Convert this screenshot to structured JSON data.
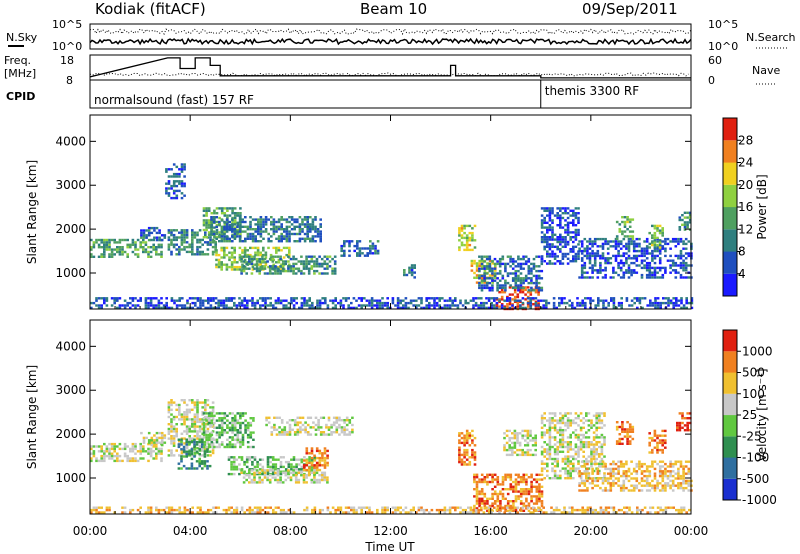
{
  "header": {
    "station": "Kodiak (fitACF)",
    "beam": "Beam 10",
    "date": "09/Sep/2011"
  },
  "summary_panels": {
    "nsky_label": "N.Sky",
    "nsearch_label": "N.Search",
    "nsky_ticks": [
      "10^5",
      "10^0"
    ],
    "nsearch_ticks": [
      "10^5",
      "10^0"
    ],
    "freq_label": "Freq.",
    "freq_unit": "[MHz]",
    "freq_ticks": [
      "18",
      "8"
    ],
    "nave_label": "Nave",
    "nave_ticks": [
      "60",
      "0"
    ],
    "cpid_label": "CPID",
    "programs": [
      {
        "name": "normalsound (fast) 157 RF",
        "start_hour": 0,
        "end_hour": 18
      },
      {
        "name": "themis 3300 RF",
        "start_hour": 18,
        "end_hour": 24
      }
    ],
    "freq_step_hours": [
      [
        0,
        8.5
      ],
      [
        3.1,
        17.6
      ],
      [
        3.6,
        17.6
      ],
      [
        3.6,
        12.5
      ],
      [
        4.2,
        12.5
      ],
      [
        4.2,
        17.6
      ],
      [
        4.8,
        17.6
      ],
      [
        4.8,
        14
      ],
      [
        5.2,
        14
      ],
      [
        5.2,
        9
      ],
      [
        14.4,
        9
      ],
      [
        14.4,
        14
      ],
      [
        14.6,
        14
      ],
      [
        14.6,
        9
      ],
      [
        18,
        9
      ],
      [
        18,
        8
      ],
      [
        24,
        8
      ]
    ]
  },
  "chart_data": [
    {
      "type": "heatmap",
      "name": "power",
      "ylabel": "Slant Range [km]",
      "xlabel": "Time UT",
      "x_ticks": [
        "00:00",
        "04:00",
        "08:00",
        "12:00",
        "16:00",
        "20:00",
        "00:00"
      ],
      "x_range_hours": [
        0,
        24
      ],
      "y_ticks": [
        1000,
        2000,
        3000,
        4000
      ],
      "ylim": [
        180,
        4600
      ],
      "colorbar": {
        "label": "Power [dB]",
        "ticks": [
          4,
          8,
          12,
          16,
          20,
          24,
          28
        ],
        "range": [
          0,
          32
        ],
        "colors": [
          "#1a1aff",
          "#1f4fbf",
          "#2f7f7f",
          "#4fa060",
          "#8fd040",
          "#f0d020",
          "#f08020",
          "#e02010"
        ]
      },
      "echo_regions": [
        {
          "t": [
            0,
            2.9
          ],
          "r": [
            1380,
            1780
          ],
          "level": 13
        },
        {
          "t": [
            2.0,
            3.0
          ],
          "r": [
            1750,
            2050
          ],
          "level": 8
        },
        {
          "t": [
            3.1,
            5.0
          ],
          "r": [
            1400,
            2000
          ],
          "level": 11
        },
        {
          "t": [
            3.0,
            3.8
          ],
          "r": [
            2700,
            3500
          ],
          "level": 7
        },
        {
          "t": [
            4.5,
            6.0
          ],
          "r": [
            1800,
            2500
          ],
          "level": 14
        },
        {
          "t": [
            4.8,
            9.2
          ],
          "r": [
            1700,
            2300
          ],
          "level": 9
        },
        {
          "t": [
            5.0,
            8.0
          ],
          "r": [
            1100,
            1600
          ],
          "level": 17
        },
        {
          "t": [
            6.0,
            9.8
          ],
          "r": [
            1000,
            1400
          ],
          "level": 12
        },
        {
          "t": [
            10.0,
            11.5
          ],
          "r": [
            1400,
            1750
          ],
          "level": 8
        },
        {
          "t": [
            12.5,
            13.0
          ],
          "r": [
            900,
            1200
          ],
          "level": 8
        },
        {
          "t": [
            14.7,
            15.4
          ],
          "r": [
            1500,
            2100
          ],
          "level": 20
        },
        {
          "t": [
            15.2,
            16.2
          ],
          "r": [
            800,
            1300
          ],
          "level": 22
        },
        {
          "t": [
            16.2,
            17.9
          ],
          "r": [
            200,
            700
          ],
          "level": 29
        },
        {
          "t": [
            15.5,
            18.0
          ],
          "r": [
            600,
            1400
          ],
          "level": 8
        },
        {
          "t": [
            18.0,
            19.5
          ],
          "r": [
            1200,
            2500
          ],
          "level": 6
        },
        {
          "t": [
            19.5,
            24.0
          ],
          "r": [
            900,
            1800
          ],
          "level": 6
        },
        {
          "t": [
            21.0,
            21.7
          ],
          "r": [
            1800,
            2300
          ],
          "level": 16
        },
        {
          "t": [
            22.3,
            22.9
          ],
          "r": [
            1600,
            2100
          ],
          "level": 16
        },
        {
          "t": [
            23.5,
            24.0
          ],
          "r": [
            2000,
            2400
          ],
          "level": 12
        },
        {
          "t": [
            0,
            24.0
          ],
          "r": [
            200,
            450
          ],
          "level": 6
        }
      ]
    },
    {
      "type": "heatmap",
      "name": "velocity",
      "ylabel": "Slant Range [km]",
      "xlabel": "Time UT",
      "x_ticks": [
        "00:00",
        "04:00",
        "08:00",
        "12:00",
        "16:00",
        "20:00",
        "00:00"
      ],
      "x_range_hours": [
        0,
        24
      ],
      "y_ticks": [
        1000,
        2000,
        3000,
        4000
      ],
      "ylim": [
        180,
        4600
      ],
      "colorbar": {
        "label": "Velocity [m s⁻¹]",
        "ticks": [
          "1000",
          "500",
          "100",
          "25",
          "-25",
          "-100",
          "-500",
          "-1000"
        ],
        "colors": [
          "#1a2fd0",
          "#2f6fa0",
          "#2f8f50",
          "#60c840",
          "#c8c8c8",
          "#f0c030",
          "#f08020",
          "#e02010"
        ]
      },
      "echo_regions": [
        {
          "t": [
            0,
            2.9
          ],
          "r": [
            1400,
            1800
          ],
          "cls": 4
        },
        {
          "t": [
            2.0,
            3.0
          ],
          "r": [
            1750,
            2050
          ],
          "cls": 4
        },
        {
          "t": [
            3.1,
            4.9
          ],
          "r": [
            1500,
            2800
          ],
          "cls": 4
        },
        {
          "t": [
            3.5,
            4.8
          ],
          "r": [
            1200,
            1900
          ],
          "cls": 2
        },
        {
          "t": [
            4.5,
            6.5
          ],
          "r": [
            1700,
            2500
          ],
          "cls": 3
        },
        {
          "t": [
            5.5,
            9.0
          ],
          "r": [
            1100,
            1500
          ],
          "cls": 3
        },
        {
          "t": [
            7.0,
            10.5
          ],
          "r": [
            2000,
            2400
          ],
          "cls": 4
        },
        {
          "t": [
            6.0,
            9.5
          ],
          "r": [
            900,
            1200
          ],
          "cls": 4
        },
        {
          "t": [
            8.5,
            9.5
          ],
          "r": [
            1200,
            1700
          ],
          "cls": 6
        },
        {
          "t": [
            14.7,
            15.4
          ],
          "r": [
            1300,
            2100
          ],
          "cls": 6
        },
        {
          "t": [
            15.3,
            18.0
          ],
          "r": [
            250,
            1100
          ],
          "cls": 6
        },
        {
          "t": [
            16.5,
            17.8
          ],
          "r": [
            1500,
            2100
          ],
          "cls": 4
        },
        {
          "t": [
            18.0,
            20.5
          ],
          "r": [
            1000,
            2500
          ],
          "cls": 4
        },
        {
          "t": [
            19.5,
            24.0
          ],
          "r": [
            700,
            1400
          ],
          "cls": 5
        },
        {
          "t": [
            21.0,
            21.7
          ],
          "r": [
            1800,
            2300
          ],
          "cls": 6
        },
        {
          "t": [
            22.3,
            23.0
          ],
          "r": [
            1600,
            2100
          ],
          "cls": 6
        },
        {
          "t": [
            23.4,
            24.0
          ],
          "r": [
            2100,
            2500
          ],
          "cls": 7
        },
        {
          "t": [
            0,
            24.0
          ],
          "r": [
            200,
            350
          ],
          "cls": 5
        }
      ]
    }
  ]
}
